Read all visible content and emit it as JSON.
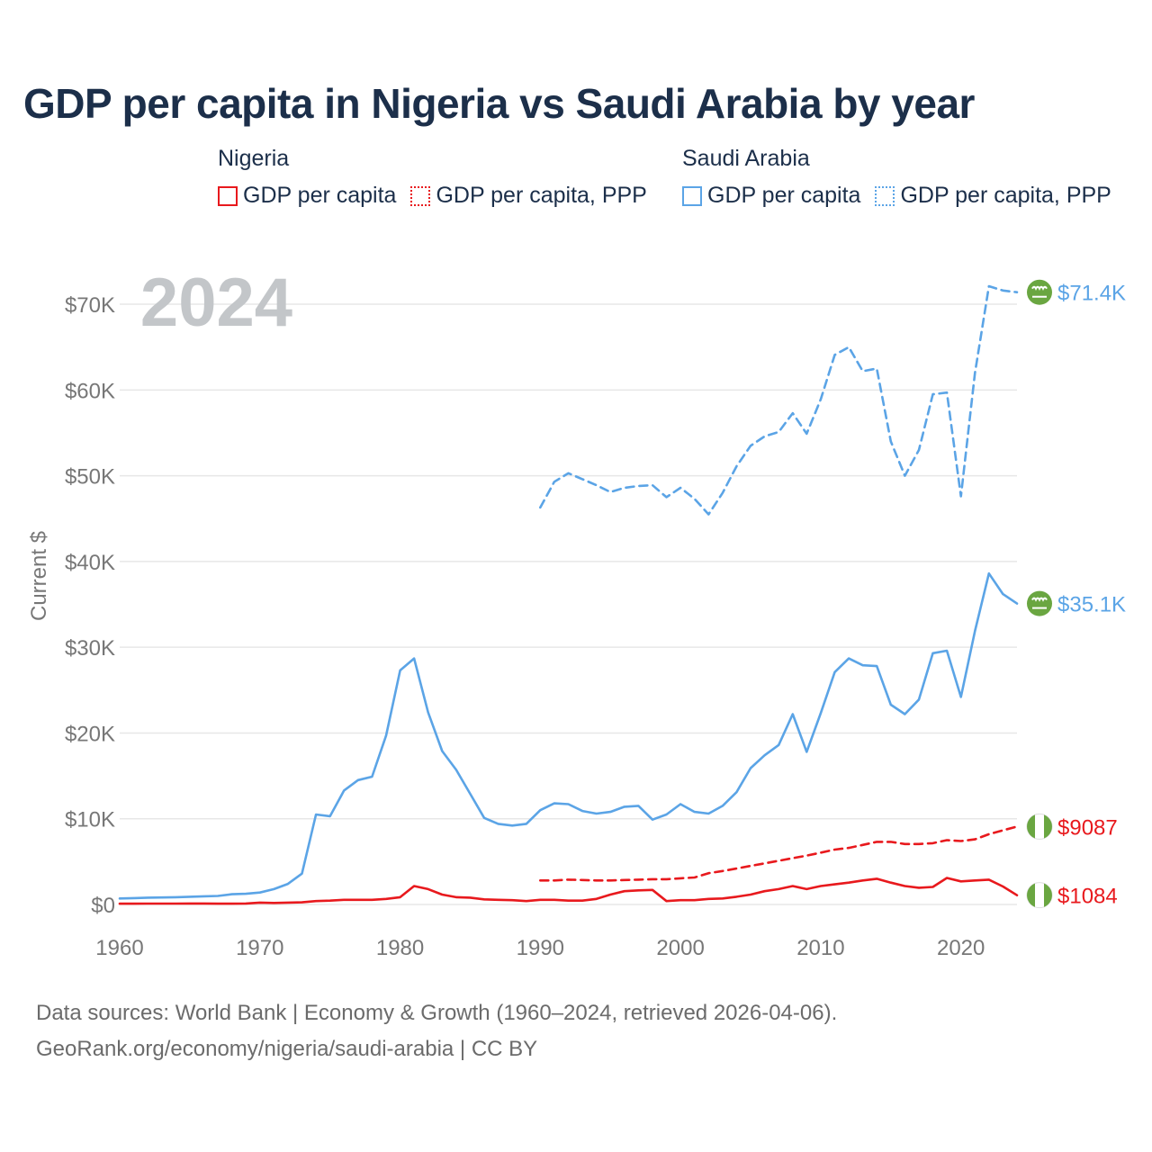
{
  "title": "GDP per capita in Nigeria vs Saudi Arabia by year",
  "legend": {
    "groups": [
      {
        "country": "Nigeria",
        "items": [
          {
            "label": "GDP per capita",
            "color": "#e8191d",
            "style": "solid"
          },
          {
            "label": "GDP per capita, PPP",
            "color": "#e8191d",
            "style": "dotted"
          }
        ]
      },
      {
        "country": "Saudi Arabia",
        "items": [
          {
            "label": "GDP per capita",
            "color": "#5ba4e6",
            "style": "solid"
          },
          {
            "label": "GDP per capita, PPP",
            "color": "#5ba4e6",
            "style": "dotted"
          }
        ]
      }
    ]
  },
  "year_watermark": "2024",
  "source": {
    "line1": "Data sources: World Bank | Economy & Growth (1960–2024, retrieved 2026-04-06).",
    "line2": "GeoRank.org/economy/nigeria/saudi-arabia | CC BY"
  },
  "chart_data": {
    "type": "line",
    "title": "GDP per capita in Nigeria vs Saudi Arabia by year",
    "xlabel": "",
    "ylabel": "Current $",
    "xlim": [
      1960,
      2024
    ],
    "ylim": [
      0,
      72000
    ],
    "x_ticks": [
      1960,
      1970,
      1980,
      1990,
      2000,
      2010,
      2020
    ],
    "x_tick_labels": [
      "1960",
      "1970",
      "1980",
      "1990",
      "2000",
      "2010",
      "2020"
    ],
    "y_ticks": [
      0,
      10000,
      20000,
      30000,
      40000,
      50000,
      60000,
      70000
    ],
    "y_tick_labels": [
      "$0",
      "$10K",
      "$20K",
      "$30K",
      "$40K",
      "$50K",
      "$60K",
      "$70K"
    ],
    "grid": true,
    "series": [
      {
        "name": "Saudi Arabia GDP per capita, PPP",
        "color": "#5ba4e6",
        "dash": true,
        "end_label": "$71.4K",
        "flag": "saudi",
        "x": [
          1990,
          1991,
          1992,
          1993,
          1994,
          1995,
          1996,
          1997,
          1998,
          1999,
          2000,
          2001,
          2002,
          2003,
          2004,
          2005,
          2006,
          2007,
          2008,
          2009,
          2010,
          2011,
          2012,
          2013,
          2014,
          2015,
          2016,
          2017,
          2018,
          2019,
          2020,
          2021,
          2022,
          2023,
          2024
        ],
        "values": [
          46300,
          49300,
          50300,
          49600,
          48900,
          48100,
          48600,
          48800,
          48900,
          47500,
          48600,
          47300,
          45500,
          48000,
          51100,
          53500,
          54600,
          55100,
          57300,
          54900,
          58900,
          64100,
          65000,
          62200,
          62500,
          54000,
          50000,
          53000,
          59500,
          59700,
          47600,
          62000,
          72100,
          71600,
          71400
        ]
      },
      {
        "name": "Saudi Arabia GDP per capita",
        "color": "#5ba4e6",
        "dash": false,
        "end_label": "$35.1K",
        "flag": "saudi",
        "x": [
          1960,
          1961,
          1962,
          1963,
          1964,
          1965,
          1966,
          1967,
          1968,
          1969,
          1970,
          1971,
          1972,
          1973,
          1974,
          1975,
          1976,
          1977,
          1978,
          1979,
          1980,
          1981,
          1982,
          1983,
          1984,
          1985,
          1986,
          1987,
          1988,
          1989,
          1990,
          1991,
          1992,
          1993,
          1994,
          1995,
          1996,
          1997,
          1998,
          1999,
          2000,
          2001,
          2002,
          2003,
          2004,
          2005,
          2006,
          2007,
          2008,
          2009,
          2010,
          2011,
          2012,
          2013,
          2014,
          2015,
          2016,
          2017,
          2018,
          2019,
          2020,
          2021,
          2022,
          2023,
          2024
        ],
        "values": [
          700,
          750,
          800,
          820,
          850,
          900,
          950,
          1000,
          1200,
          1250,
          1400,
          1800,
          2400,
          3600,
          10500,
          10300,
          13300,
          14500,
          14900,
          19700,
          27300,
          28700,
          22400,
          17900,
          15700,
          12900,
          10100,
          9400,
          9200,
          9400,
          11000,
          11800,
          11700,
          10900,
          10600,
          10800,
          11400,
          11500,
          9900,
          10500,
          11700,
          10800,
          10600,
          11500,
          13100,
          15900,
          17400,
          18600,
          22200,
          17800,
          22300,
          27100,
          28700,
          27900,
          27800,
          23300,
          22200,
          23900,
          29300,
          29600,
          24200,
          31900,
          38600,
          36200,
          35100
        ]
      },
      {
        "name": "Nigeria GDP per capita, PPP",
        "color": "#e8191d",
        "dash": true,
        "end_label": "$9087",
        "flag": "nigeria",
        "x": [
          1990,
          1991,
          1992,
          1993,
          1994,
          1995,
          1996,
          1997,
          1998,
          1999,
          2000,
          2001,
          2002,
          2003,
          2004,
          2005,
          2006,
          2007,
          2008,
          2009,
          2010,
          2011,
          2012,
          2013,
          2014,
          2015,
          2016,
          2017,
          2018,
          2019,
          2020,
          2021,
          2022,
          2023,
          2024
        ],
        "values": [
          2800,
          2800,
          2900,
          2850,
          2800,
          2800,
          2850,
          2900,
          2950,
          2950,
          3050,
          3150,
          3650,
          3900,
          4200,
          4500,
          4800,
          5100,
          5400,
          5700,
          6050,
          6400,
          6600,
          6950,
          7300,
          7300,
          7050,
          7050,
          7150,
          7500,
          7400,
          7600,
          8200,
          8650,
          9087
        ]
      },
      {
        "name": "Nigeria GDP per capita",
        "color": "#e8191d",
        "dash": false,
        "end_label": "$1084",
        "flag": "nigeria",
        "x": [
          1960,
          1961,
          1962,
          1963,
          1964,
          1965,
          1966,
          1967,
          1968,
          1969,
          1970,
          1971,
          1972,
          1973,
          1974,
          1975,
          1976,
          1977,
          1978,
          1979,
          1980,
          1981,
          1982,
          1983,
          1984,
          1985,
          1986,
          1987,
          1988,
          1989,
          1990,
          1991,
          1992,
          1993,
          1994,
          1995,
          1996,
          1997,
          1998,
          1999,
          2000,
          2001,
          2002,
          2003,
          2004,
          2005,
          2006,
          2007,
          2008,
          2009,
          2010,
          2011,
          2012,
          2013,
          2014,
          2015,
          2016,
          2017,
          2018,
          2019,
          2020,
          2021,
          2022,
          2023,
          2024
        ],
        "values": [
          90,
          95,
          100,
          105,
          110,
          115,
          120,
          90,
          95,
          120,
          220,
          180,
          220,
          250,
          400,
          450,
          550,
          550,
          550,
          650,
          850,
          2150,
          1800,
          1150,
          850,
          800,
          600,
          550,
          500,
          400,
          550,
          550,
          450,
          450,
          650,
          1150,
          1550,
          1650,
          1700,
          400,
          500,
          500,
          650,
          700,
          900,
          1150,
          1550,
          1800,
          2150,
          1800,
          2150,
          2350,
          2550,
          2800,
          3000,
          2550,
          2150,
          1950,
          2050,
          3100,
          2700,
          2800,
          2900,
          2100,
          1084
        ]
      }
    ]
  }
}
